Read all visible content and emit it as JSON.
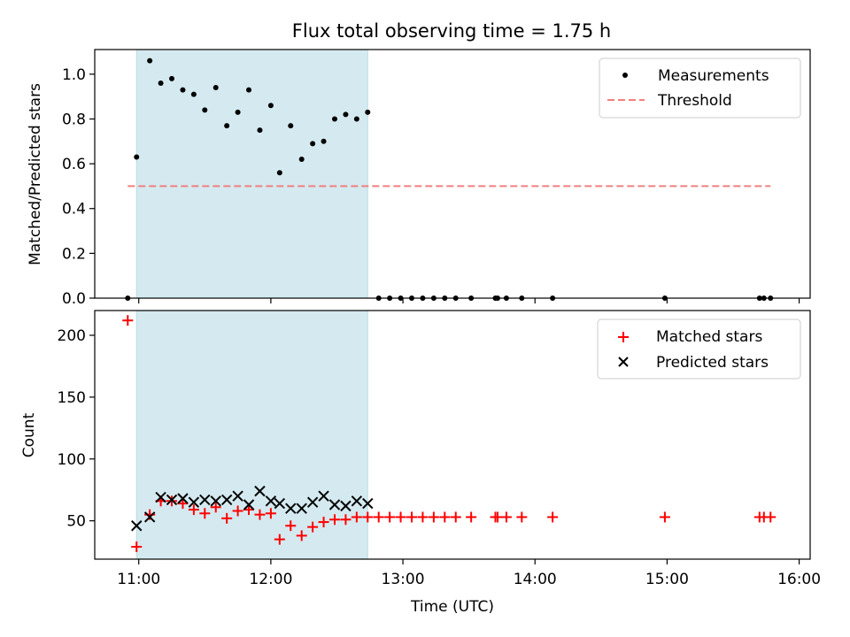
{
  "chart_data": [
    {
      "type": "scatter",
      "title": "Flux total observing time = 1.75 h",
      "xlabel": "",
      "ylabel": "Matched/Predicted stars",
      "xlim": [
        "10:40",
        "16:05"
      ],
      "ylim": [
        0,
        1.11
      ],
      "yticks": [
        "0.0",
        "0.2",
        "0.4",
        "0.6",
        "0.8",
        "1.0"
      ],
      "xticks": [
        "11:00",
        "12:00",
        "13:00",
        "14:00",
        "15:00",
        "16:00"
      ],
      "show_xtick_labels": false,
      "legend_position": "top-right",
      "shaded_interval": {
        "start": "10:59",
        "end": "12:44",
        "color": "#d4eaf0"
      },
      "series": [
        {
          "name": "Measurements",
          "kind": "points",
          "color": "#000000",
          "x": [
            "10:55",
            "10:59",
            "11:05",
            "11:10",
            "11:15",
            "11:20",
            "11:25",
            "11:30",
            "11:35",
            "11:40",
            "11:45",
            "11:50",
            "11:55",
            "12:00",
            "12:04",
            "12:09",
            "12:14",
            "12:19",
            "12:24",
            "12:29",
            "12:34",
            "12:39",
            "12:44",
            "12:49",
            "12:54",
            "12:59",
            "13:04",
            "13:09",
            "13:14",
            "13:19",
            "13:24",
            "13:31",
            "13:42",
            "13:43",
            "13:47",
            "13:54",
            "14:08",
            "14:59",
            "15:42",
            "15:44",
            "15:47"
          ],
          "y": [
            0,
            0.63,
            1.06,
            0.96,
            0.98,
            0.93,
            0.91,
            0.84,
            0.94,
            0.77,
            0.83,
            0.93,
            0.75,
            0.86,
            0.56,
            0.77,
            0.62,
            0.69,
            0.7,
            0.8,
            0.82,
            0.8,
            0.83,
            0,
            0,
            0,
            0,
            0,
            0,
            0,
            0,
            0,
            0,
            0,
            0,
            0,
            0,
            0,
            0,
            0,
            0
          ]
        },
        {
          "name": "Threshold",
          "kind": "dashed-line",
          "color": "#f08080",
          "x": [
            "10:55",
            "15:47"
          ],
          "y": [
            0.5,
            0.5
          ]
        }
      ]
    },
    {
      "type": "scatter",
      "title": "",
      "xlabel": "Time (UTC)",
      "ylabel": "Count",
      "xlim": [
        "10:40",
        "16:05"
      ],
      "ylim": [
        19,
        220
      ],
      "yticks": [
        "50",
        "100",
        "150",
        "200"
      ],
      "xticks": [
        "11:00",
        "12:00",
        "13:00",
        "14:00",
        "15:00",
        "16:00"
      ],
      "show_xtick_labels": true,
      "legend_position": "top-right",
      "shaded_interval": {
        "start": "10:59",
        "end": "12:44",
        "color": "#d4eaf0"
      },
      "series": [
        {
          "name": "Matched stars",
          "kind": "plus",
          "color": "#ff0000",
          "x": [
            "10:55",
            "10:59",
            "11:05",
            "11:10",
            "11:15",
            "11:20",
            "11:25",
            "11:30",
            "11:35",
            "11:40",
            "11:45",
            "11:50",
            "11:55",
            "12:00",
            "12:04",
            "12:09",
            "12:14",
            "12:19",
            "12:24",
            "12:29",
            "12:34",
            "12:39",
            "12:44",
            "12:49",
            "12:54",
            "12:59",
            "13:04",
            "13:09",
            "13:14",
            "13:19",
            "13:24",
            "13:31",
            "13:42",
            "13:43",
            "13:47",
            "13:54",
            "14:08",
            "14:59",
            "15:42",
            "15:44",
            "15:47"
          ],
          "y": [
            212,
            29,
            55,
            66,
            66,
            64,
            59,
            56,
            61,
            52,
            58,
            59,
            55,
            56,
            35,
            46,
            38,
            45,
            49,
            51,
            51,
            53,
            53,
            53,
            53,
            53,
            53,
            53,
            53,
            53,
            53,
            53,
            53,
            53,
            53,
            53,
            53,
            53,
            53,
            53,
            53
          ]
        },
        {
          "name": "Predicted stars",
          "kind": "x",
          "color": "#000000",
          "x": [
            "10:59",
            "11:05",
            "11:10",
            "11:15",
            "11:20",
            "11:25",
            "11:30",
            "11:35",
            "11:40",
            "11:45",
            "11:50",
            "11:55",
            "12:00",
            "12:04",
            "12:09",
            "12:14",
            "12:19",
            "12:24",
            "12:29",
            "12:34",
            "12:39",
            "12:44"
          ],
          "y": [
            46,
            53,
            69,
            67,
            68,
            65,
            67,
            66,
            67,
            70,
            63,
            74,
            66,
            64,
            60,
            60,
            65,
            70,
            63,
            62,
            66,
            64
          ]
        }
      ]
    }
  ]
}
